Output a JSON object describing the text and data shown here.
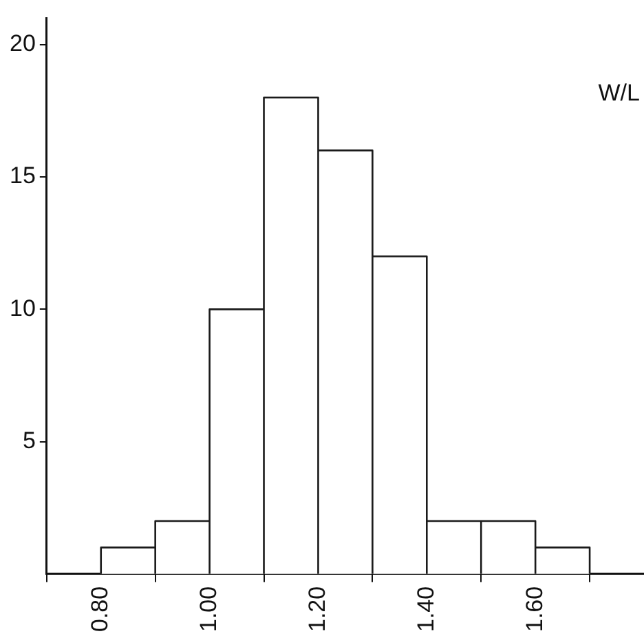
{
  "chart_data": {
    "type": "histogram",
    "bins": [
      0.8,
      0.9,
      1.0,
      1.1,
      1.2,
      1.3,
      1.4,
      1.5,
      1.6,
      1.7
    ],
    "values": [
      1,
      2,
      10,
      18,
      16,
      12,
      2,
      2,
      1
    ],
    "color": "#ffffff",
    "xlim": [
      0.7,
      1.8
    ],
    "xticks": [
      {
        "value": 0.8,
        "label": "0.80"
      },
      {
        "value": 1.0,
        "label": "1.00"
      },
      {
        "value": 1.2,
        "label": "1.20"
      },
      {
        "value": 1.4,
        "label": "1.40"
      },
      {
        "value": 1.6,
        "label": "1.60"
      }
    ],
    "ylim": [
      0,
      21
    ],
    "yticks": [
      5,
      10,
      15,
      20
    ],
    "grid": false,
    "annotations": [
      "W/L"
    ]
  }
}
